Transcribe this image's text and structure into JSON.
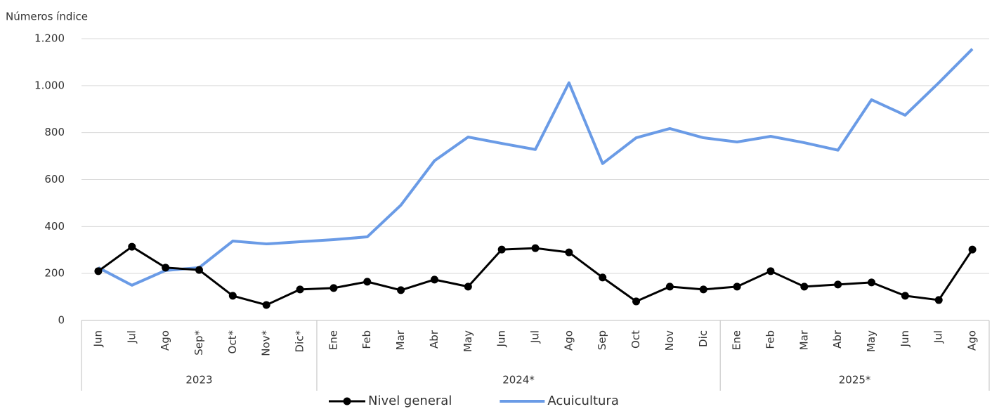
{
  "chart_data": {
    "type": "line",
    "y_axis_label": "Números índice",
    "groups": [
      {
        "name": "2023",
        "categories": [
          "Jun",
          "Jul",
          "Ago",
          "Sep*",
          "Oct*",
          "Nov*",
          "Dic*"
        ]
      },
      {
        "name": "2024*",
        "categories": [
          "Ene",
          "Feb",
          "Mar",
          "Abr",
          "May",
          "Jun",
          "Jul",
          "Ago",
          "Sep",
          "Oct",
          "Nov",
          "Dic"
        ]
      },
      {
        "name": "2025*",
        "categories": [
          "Ene",
          "Feb",
          "Mar",
          "Abr",
          "May",
          "Jun",
          "Jul",
          "Ago"
        ]
      }
    ],
    "series": [
      {
        "name": "Nivel general",
        "color": "#000000",
        "marker": "circle",
        "values": [
          210,
          314,
          225,
          215,
          105,
          66,
          132,
          138,
          165,
          129,
          174,
          144,
          302,
          308,
          290,
          183,
          81,
          144,
          132,
          144,
          210,
          144,
          153,
          162,
          105,
          87,
          302
        ]
      },
      {
        "name": "Acuicultura",
        "color": "#6a9be6",
        "values": [
          225,
          150,
          213,
          225,
          338,
          326,
          335,
          344,
          356,
          491,
          680,
          781,
          754,
          728,
          1012,
          668,
          778,
          817,
          778,
          760,
          784,
          757,
          725,
          940,
          874,
          1012,
          1156
        ]
      }
    ],
    "ylim": [
      0,
      1200
    ],
    "yticks": [
      0,
      200,
      400,
      600,
      800,
      {
        "value": 1000,
        "label": "1.000"
      },
      {
        "value": 1200,
        "label": "1.200"
      }
    ],
    "grid": true,
    "legend": "bottom"
  }
}
